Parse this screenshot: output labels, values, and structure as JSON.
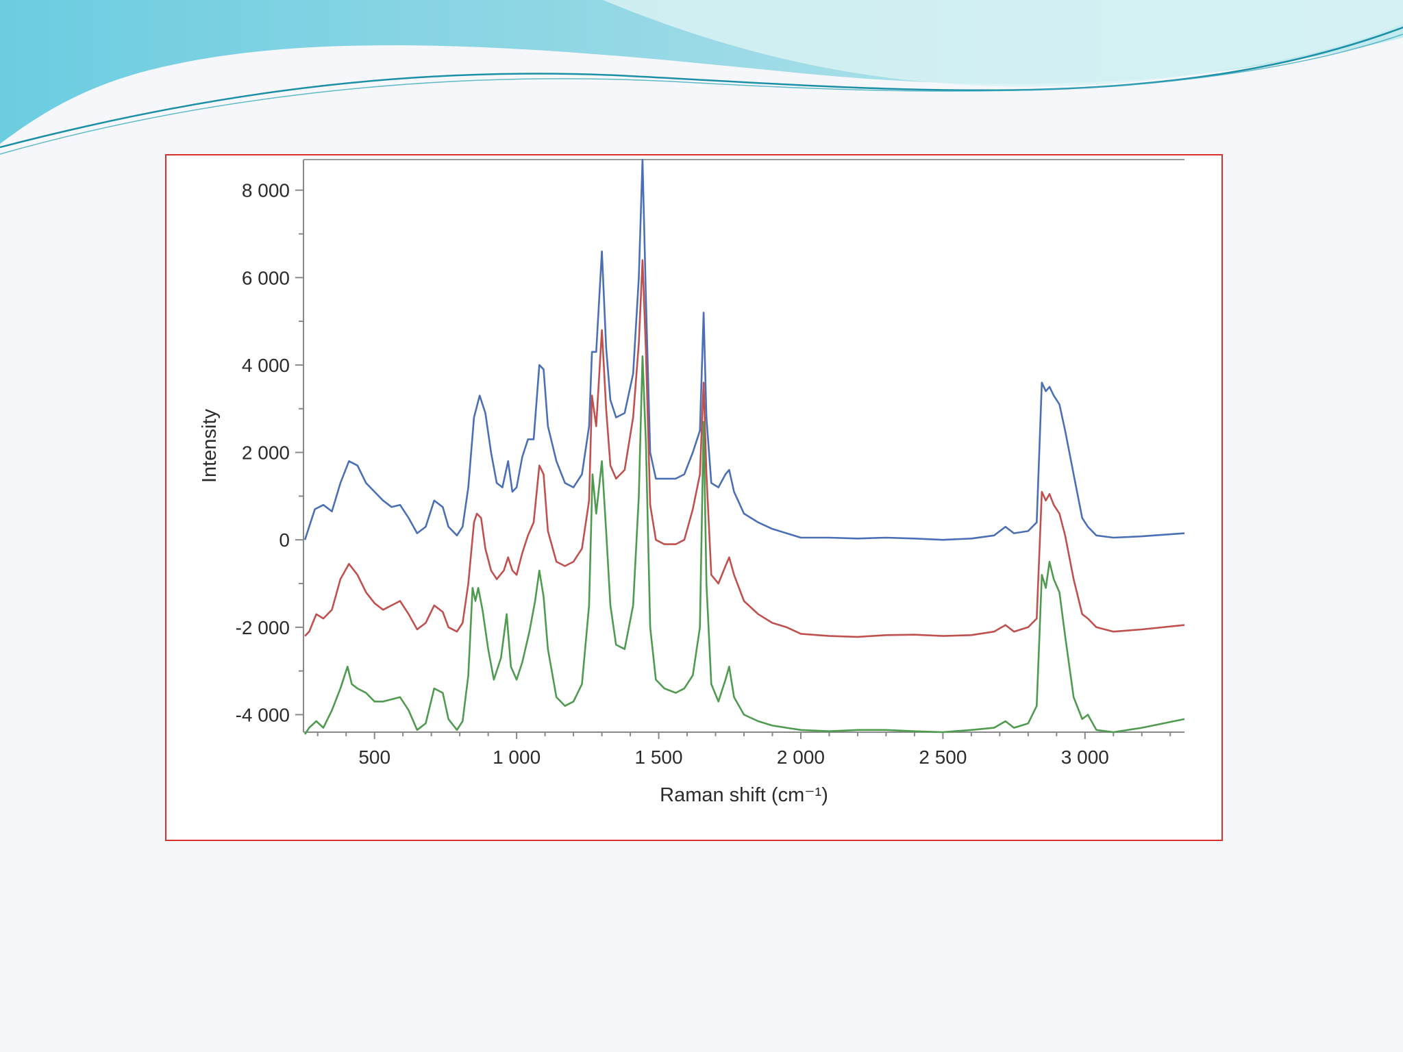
{
  "slide": {
    "background": "#f6f7fb",
    "decoration": "teal-wave-banner",
    "frame_color": "#d9302e"
  },
  "chart_data": {
    "type": "line",
    "title": "",
    "xlabel": "Raman shift (cm⁻¹)",
    "ylabel": "Intensity",
    "xlim": [
      250,
      3350
    ],
    "ylim": [
      -4400,
      8700
    ],
    "grid": false,
    "legend": "none",
    "x_ticks": [
      500,
      1000,
      1500,
      2000,
      2500,
      3000
    ],
    "x_tick_labels": [
      "500",
      "1 000",
      "1 500",
      "2 000",
      "2 500",
      "3 000"
    ],
    "y_ticks": [
      8000,
      6000,
      4000,
      2000,
      0,
      -2000,
      -4000
    ],
    "y_tick_labels": [
      "8 000",
      "6 000",
      "4 000",
      "2 000",
      "0",
      "-2 000",
      "-4 000"
    ],
    "series": [
      {
        "color": "#4a6fb5",
        "points": [
          [
            255,
            0
          ],
          [
            270,
            300
          ],
          [
            290,
            700
          ],
          [
            320,
            800
          ],
          [
            350,
            650
          ],
          [
            380,
            1300
          ],
          [
            410,
            1800
          ],
          [
            440,
            1700
          ],
          [
            470,
            1300
          ],
          [
            500,
            1100
          ],
          [
            530,
            900
          ],
          [
            560,
            750
          ],
          [
            590,
            800
          ],
          [
            620,
            500
          ],
          [
            650,
            150
          ],
          [
            680,
            300
          ],
          [
            710,
            900
          ],
          [
            740,
            750
          ],
          [
            760,
            300
          ],
          [
            790,
            100
          ],
          [
            810,
            300
          ],
          [
            830,
            1200
          ],
          [
            850,
            2800
          ],
          [
            870,
            3300
          ],
          [
            890,
            2900
          ],
          [
            910,
            2000
          ],
          [
            930,
            1300
          ],
          [
            950,
            1200
          ],
          [
            970,
            1800
          ],
          [
            985,
            1100
          ],
          [
            1000,
            1200
          ],
          [
            1020,
            1900
          ],
          [
            1040,
            2300
          ],
          [
            1060,
            2300
          ],
          [
            1080,
            4000
          ],
          [
            1095,
            3900
          ],
          [
            1110,
            2600
          ],
          [
            1140,
            1800
          ],
          [
            1170,
            1300
          ],
          [
            1200,
            1200
          ],
          [
            1230,
            1500
          ],
          [
            1255,
            2600
          ],
          [
            1265,
            4300
          ],
          [
            1280,
            4300
          ],
          [
            1300,
            6600
          ],
          [
            1315,
            4400
          ],
          [
            1330,
            3200
          ],
          [
            1350,
            2800
          ],
          [
            1380,
            2900
          ],
          [
            1410,
            3800
          ],
          [
            1430,
            6000
          ],
          [
            1443,
            8700
          ],
          [
            1455,
            5500
          ],
          [
            1470,
            2000
          ],
          [
            1490,
            1400
          ],
          [
            1520,
            1400
          ],
          [
            1560,
            1400
          ],
          [
            1590,
            1500
          ],
          [
            1620,
            2000
          ],
          [
            1645,
            2500
          ],
          [
            1658,
            5200
          ],
          [
            1668,
            2800
          ],
          [
            1685,
            1300
          ],
          [
            1710,
            1200
          ],
          [
            1735,
            1500
          ],
          [
            1748,
            1600
          ],
          [
            1765,
            1100
          ],
          [
            1800,
            600
          ],
          [
            1850,
            400
          ],
          [
            1900,
            250
          ],
          [
            1950,
            150
          ],
          [
            2000,
            50
          ],
          [
            2100,
            50
          ],
          [
            2200,
            30
          ],
          [
            2300,
            50
          ],
          [
            2400,
            30
          ],
          [
            2500,
            0
          ],
          [
            2600,
            30
          ],
          [
            2680,
            100
          ],
          [
            2720,
            300
          ],
          [
            2750,
            150
          ],
          [
            2800,
            200
          ],
          [
            2830,
            400
          ],
          [
            2848,
            3600
          ],
          [
            2862,
            3400
          ],
          [
            2875,
            3500
          ],
          [
            2890,
            3300
          ],
          [
            2910,
            3100
          ],
          [
            2930,
            2500
          ],
          [
            2960,
            1500
          ],
          [
            2990,
            500
          ],
          [
            3010,
            300
          ],
          [
            3040,
            100
          ],
          [
            3100,
            50
          ],
          [
            3200,
            80
          ],
          [
            3350,
            150
          ]
        ]
      },
      {
        "color": "#c0504d",
        "points": [
          [
            255,
            -2200
          ],
          [
            270,
            -2100
          ],
          [
            295,
            -1700
          ],
          [
            320,
            -1800
          ],
          [
            350,
            -1600
          ],
          [
            380,
            -900
          ],
          [
            410,
            -550
          ],
          [
            440,
            -800
          ],
          [
            470,
            -1200
          ],
          [
            500,
            -1450
          ],
          [
            530,
            -1600
          ],
          [
            560,
            -1500
          ],
          [
            590,
            -1400
          ],
          [
            620,
            -1700
          ],
          [
            650,
            -2050
          ],
          [
            680,
            -1900
          ],
          [
            710,
            -1500
          ],
          [
            740,
            -1650
          ],
          [
            760,
            -2000
          ],
          [
            790,
            -2100
          ],
          [
            810,
            -1900
          ],
          [
            830,
            -1000
          ],
          [
            850,
            400
          ],
          [
            860,
            600
          ],
          [
            875,
            500
          ],
          [
            890,
            -200
          ],
          [
            910,
            -700
          ],
          [
            930,
            -900
          ],
          [
            955,
            -700
          ],
          [
            970,
            -400
          ],
          [
            985,
            -700
          ],
          [
            1000,
            -800
          ],
          [
            1020,
            -300
          ],
          [
            1040,
            100
          ],
          [
            1060,
            400
          ],
          [
            1080,
            1700
          ],
          [
            1095,
            1500
          ],
          [
            1110,
            200
          ],
          [
            1140,
            -500
          ],
          [
            1170,
            -600
          ],
          [
            1200,
            -500
          ],
          [
            1230,
            -200
          ],
          [
            1255,
            900
          ],
          [
            1265,
            3300
          ],
          [
            1280,
            2600
          ],
          [
            1300,
            4800
          ],
          [
            1315,
            3000
          ],
          [
            1330,
            1700
          ],
          [
            1350,
            1400
          ],
          [
            1380,
            1600
          ],
          [
            1410,
            2800
          ],
          [
            1430,
            4500
          ],
          [
            1443,
            6400
          ],
          [
            1455,
            4300
          ],
          [
            1470,
            800
          ],
          [
            1490,
            0
          ],
          [
            1520,
            -100
          ],
          [
            1560,
            -100
          ],
          [
            1590,
            0
          ],
          [
            1620,
            700
          ],
          [
            1645,
            1500
          ],
          [
            1658,
            3600
          ],
          [
            1668,
            1500
          ],
          [
            1685,
            -800
          ],
          [
            1710,
            -1000
          ],
          [
            1735,
            -600
          ],
          [
            1748,
            -400
          ],
          [
            1765,
            -800
          ],
          [
            1800,
            -1400
          ],
          [
            1850,
            -1700
          ],
          [
            1900,
            -1900
          ],
          [
            1950,
            -2000
          ],
          [
            2000,
            -2150
          ],
          [
            2100,
            -2200
          ],
          [
            2200,
            -2220
          ],
          [
            2300,
            -2180
          ],
          [
            2400,
            -2170
          ],
          [
            2500,
            -2200
          ],
          [
            2600,
            -2180
          ],
          [
            2680,
            -2100
          ],
          [
            2720,
            -1950
          ],
          [
            2750,
            -2100
          ],
          [
            2800,
            -2000
          ],
          [
            2830,
            -1800
          ],
          [
            2848,
            1100
          ],
          [
            2862,
            900
          ],
          [
            2875,
            1050
          ],
          [
            2890,
            800
          ],
          [
            2910,
            600
          ],
          [
            2930,
            100
          ],
          [
            2960,
            -900
          ],
          [
            2990,
            -1700
          ],
          [
            3010,
            -1800
          ],
          [
            3040,
            -2000
          ],
          [
            3100,
            -2100
          ],
          [
            3200,
            -2050
          ],
          [
            3350,
            -1950
          ]
        ]
      },
      {
        "color": "#4e9a4f",
        "points": [
          [
            255,
            -4450
          ],
          [
            270,
            -4300
          ],
          [
            295,
            -4150
          ],
          [
            320,
            -4300
          ],
          [
            350,
            -3900
          ],
          [
            380,
            -3400
          ],
          [
            405,
            -2900
          ],
          [
            420,
            -3300
          ],
          [
            440,
            -3400
          ],
          [
            470,
            -3500
          ],
          [
            500,
            -3700
          ],
          [
            530,
            -3700
          ],
          [
            560,
            -3650
          ],
          [
            590,
            -3600
          ],
          [
            620,
            -3900
          ],
          [
            650,
            -4350
          ],
          [
            680,
            -4200
          ],
          [
            710,
            -3400
          ],
          [
            740,
            -3500
          ],
          [
            760,
            -4100
          ],
          [
            790,
            -4350
          ],
          [
            810,
            -4150
          ],
          [
            830,
            -3100
          ],
          [
            845,
            -1100
          ],
          [
            855,
            -1400
          ],
          [
            865,
            -1100
          ],
          [
            880,
            -1600
          ],
          [
            900,
            -2500
          ],
          [
            920,
            -3200
          ],
          [
            945,
            -2700
          ],
          [
            965,
            -1700
          ],
          [
            980,
            -2900
          ],
          [
            1000,
            -3200
          ],
          [
            1020,
            -2800
          ],
          [
            1045,
            -2100
          ],
          [
            1065,
            -1400
          ],
          [
            1080,
            -700
          ],
          [
            1095,
            -1300
          ],
          [
            1110,
            -2500
          ],
          [
            1140,
            -3600
          ],
          [
            1170,
            -3800
          ],
          [
            1200,
            -3700
          ],
          [
            1230,
            -3300
          ],
          [
            1255,
            -1500
          ],
          [
            1267,
            1500
          ],
          [
            1280,
            600
          ],
          [
            1300,
            1800
          ],
          [
            1315,
            200
          ],
          [
            1330,
            -1500
          ],
          [
            1350,
            -2400
          ],
          [
            1380,
            -2500
          ],
          [
            1410,
            -1500
          ],
          [
            1430,
            1000
          ],
          [
            1443,
            4200
          ],
          [
            1455,
            2200
          ],
          [
            1470,
            -2000
          ],
          [
            1490,
            -3200
          ],
          [
            1520,
            -3400
          ],
          [
            1560,
            -3500
          ],
          [
            1590,
            -3400
          ],
          [
            1620,
            -3100
          ],
          [
            1645,
            -2000
          ],
          [
            1658,
            2700
          ],
          [
            1668,
            -1000
          ],
          [
            1685,
            -3300
          ],
          [
            1710,
            -3700
          ],
          [
            1735,
            -3200
          ],
          [
            1748,
            -2900
          ],
          [
            1765,
            -3600
          ],
          [
            1800,
            -4000
          ],
          [
            1850,
            -4150
          ],
          [
            1900,
            -4250
          ],
          [
            1950,
            -4300
          ],
          [
            2000,
            -4350
          ],
          [
            2100,
            -4380
          ],
          [
            2200,
            -4350
          ],
          [
            2300,
            -4350
          ],
          [
            2400,
            -4380
          ],
          [
            2500,
            -4400
          ],
          [
            2600,
            -4350
          ],
          [
            2680,
            -4300
          ],
          [
            2720,
            -4150
          ],
          [
            2750,
            -4300
          ],
          [
            2800,
            -4200
          ],
          [
            2830,
            -3800
          ],
          [
            2848,
            -800
          ],
          [
            2862,
            -1100
          ],
          [
            2875,
            -500
          ],
          [
            2890,
            -900
          ],
          [
            2910,
            -1200
          ],
          [
            2930,
            -2200
          ],
          [
            2960,
            -3600
          ],
          [
            2990,
            -4100
          ],
          [
            3010,
            -4000
          ],
          [
            3040,
            -4350
          ],
          [
            3100,
            -4400
          ],
          [
            3200,
            -4300
          ],
          [
            3350,
            -4100
          ]
        ]
      }
    ]
  }
}
